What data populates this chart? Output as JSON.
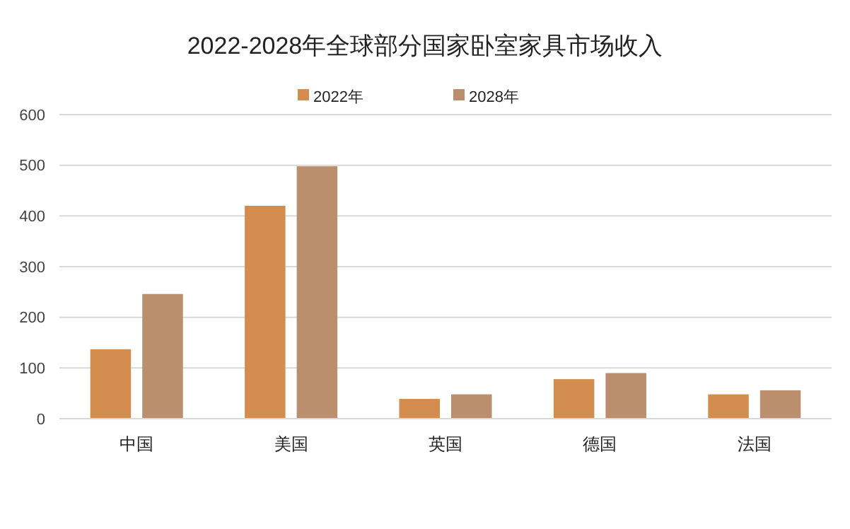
{
  "chart_data": {
    "type": "bar",
    "title": "2022-2028年全球部分国家卧室家具市场收入",
    "categories": [
      "中国",
      "美国",
      "英国",
      "德国",
      "法国"
    ],
    "series": [
      {
        "name": "2022年",
        "color": "#d38d4f",
        "values": [
          137,
          420,
          39,
          78,
          48
        ]
      },
      {
        "name": "2028年",
        "color": "#bb8f6d",
        "values": [
          246,
          498,
          48,
          90,
          56
        ]
      }
    ],
    "ylim": [
      0,
      600
    ],
    "yticks": [
      0,
      100,
      200,
      300,
      400,
      500,
      600
    ],
    "grid": "y",
    "legend": "top"
  }
}
